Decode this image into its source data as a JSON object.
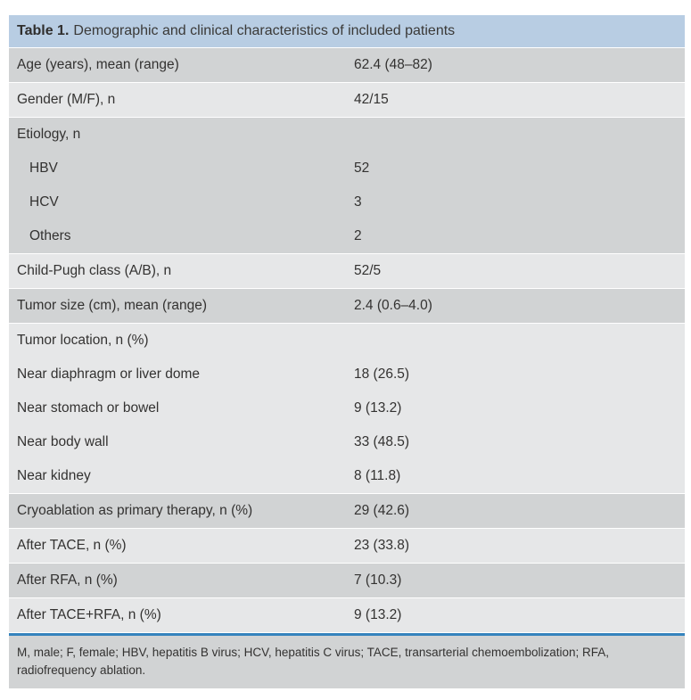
{
  "colors": {
    "header_bg": "#b8cde3",
    "row_dark_bg": "#d1d3d4",
    "row_light_bg": "#e6e7e8",
    "footnote_bg": "#d1d3d4",
    "divider_blue": "#3583bd",
    "text": "#333231"
  },
  "table": {
    "title_prefix": "Table 1.",
    "title_text": "Demographic and clinical characteristics of included patients",
    "rows": [
      {
        "label": "Age (years), mean (range)",
        "value": "62.4 (48–82)"
      },
      {
        "label": "Gender (M/F), n",
        "value": "42/15"
      },
      {
        "label": "Etiology, n",
        "value": ""
      },
      {
        "label": "HBV",
        "value": "52"
      },
      {
        "label": "HCV",
        "value": "3"
      },
      {
        "label": "Others",
        "value": "2"
      },
      {
        "label": "Child-Pugh class (A/B), n",
        "value": "52/5"
      },
      {
        "label": "Tumor size (cm), mean (range)",
        "value": "2.4 (0.6–4.0)"
      },
      {
        "label": "Tumor location, n (%)",
        "value": ""
      },
      {
        "label": "Near diaphragm or liver dome",
        "value": "18 (26.5)"
      },
      {
        "label": "Near stomach or bowel",
        "value": "9 (13.2)"
      },
      {
        "label": "Near body wall",
        "value": "33 (48.5)"
      },
      {
        "label": "Near kidney",
        "value": "8 (11.8)"
      },
      {
        "label": "Cryoablation as primary therapy, n (%)",
        "value": "29 (42.6)"
      },
      {
        "label": "After TACE, n (%)",
        "value": "23 (33.8)"
      },
      {
        "label": "After RFA, n (%)",
        "value": "7 (10.3)"
      },
      {
        "label": "After TACE+RFA, n (%)",
        "value": "9 (13.2)"
      }
    ],
    "footnote": "M, male; F, female; HBV, hepatitis B virus; HCV, hepatitis C virus; TACE, transarterial chemoembolization; RFA, radiofrequency ablation."
  }
}
